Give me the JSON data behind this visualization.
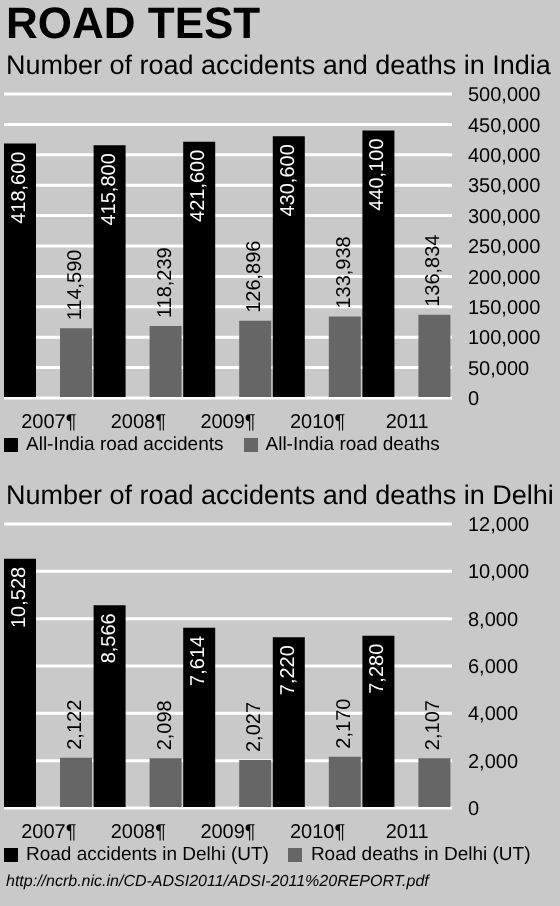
{
  "chart_data": [
    {
      "type": "bar",
      "title": "ROAD TEST",
      "subtitle": "Number of road accidents and deaths in India",
      "categories": [
        "2007¶",
        "2008¶",
        "2009¶",
        "2010¶",
        "2011"
      ],
      "series": [
        {
          "name": "All-India road accidents",
          "color": "#000000",
          "values": [
            418600,
            415800,
            421600,
            430600,
            440100
          ],
          "value_labels": [
            "418,600",
            "415,800",
            "421,600",
            "430,600",
            "440,100"
          ]
        },
        {
          "name": "All-India road deaths",
          "color": "#666666",
          "values": [
            114590,
            118239,
            126896,
            133938,
            136834
          ],
          "value_labels": [
            "114,590",
            "118,239",
            "126,896",
            "133,938",
            "136,834"
          ]
        }
      ],
      "ylim": [
        0,
        500000
      ],
      "yticks": [
        0,
        {
          "value": 50000,
          "label": "50,000"
        },
        {
          "value": 100000,
          "label": "100,000"
        },
        {
          "value": 150000,
          "label": "150,000"
        },
        {
          "value": 200000,
          "label": "200,000"
        },
        {
          "value": 250000,
          "label": "250,000"
        },
        {
          "value": 300000,
          "label": "300,000"
        },
        {
          "value": 350000,
          "label": "350,000"
        },
        {
          "value": 400000,
          "label": "400,000"
        },
        {
          "value": 450000,
          "label": "450,000"
        },
        {
          "value": 500000,
          "label": "500,000"
        }
      ],
      "grid": "y",
      "legend": "bottom"
    },
    {
      "type": "bar",
      "title": "Number of road accidents and deaths in Delhi",
      "categories": [
        "2007¶",
        "2008¶",
        "2009¶",
        "2010¶",
        "2011"
      ],
      "series": [
        {
          "name": "Road accidents in Delhi (UT)",
          "color": "#000000",
          "values": [
            10528,
            8566,
            7614,
            7220,
            7280
          ],
          "value_labels": [
            "10,528",
            "8,566",
            "7,614",
            "7,220",
            "7,280"
          ]
        },
        {
          "name": "Road deaths in Delhi (UT)",
          "color": "#666666",
          "values": [
            2122,
            2098,
            2027,
            2170,
            2107
          ],
          "value_labels": [
            "2,122",
            "2,098",
            "2,027",
            "2,170",
            "2,107"
          ]
        }
      ],
      "ylim": [
        0,
        12000
      ],
      "yticks": [
        0,
        {
          "value": 2000,
          "label": "2,000"
        },
        {
          "value": 4000,
          "label": "4,000"
        },
        {
          "value": 6000,
          "label": "6,000"
        },
        {
          "value": 8000,
          "label": "8,000"
        },
        {
          "value": 10000,
          "label": "10,000"
        },
        {
          "value": 12000,
          "label": "12,000"
        }
      ],
      "grid": "y",
      "legend": "bottom",
      "annotations": [
        "http://ncrb.nic.in/CD-ADSI2011/ADSI-2011%20REPORT.pdf"
      ]
    }
  ]
}
